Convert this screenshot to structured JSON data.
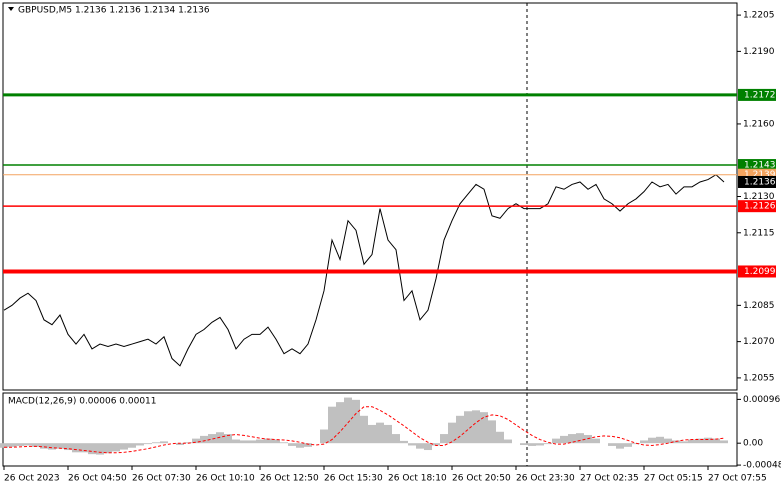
{
  "chart_data": [
    {
      "type": "line",
      "title": "GBPUSD,M5 1.2136 1.2136 1.2134 1.2136",
      "categories": [
        "26 Oct 2023",
        null,
        null,
        null,
        null,
        null,
        null,
        null,
        "26 Oct 04:50",
        null,
        null,
        null,
        null,
        null,
        null,
        null,
        "26 Oct 07:30",
        null,
        null,
        null,
        null,
        null,
        null,
        null,
        "26 Oct 10:10",
        null,
        null,
        null,
        null,
        null,
        null,
        null,
        "26 Oct 12:50",
        null,
        null,
        null,
        null,
        null,
        null,
        null,
        "26 Oct 15:30",
        null,
        null,
        null,
        null,
        null,
        null,
        null,
        "26 Oct 18:10",
        null,
        null,
        null,
        null,
        null,
        null,
        null,
        "26 Oct 20:50",
        null,
        null,
        null,
        null,
        null,
        null,
        null,
        "26 Oct 23:30",
        null,
        null,
        null,
        null,
        null,
        null,
        null,
        "27 Oct 02:35",
        null,
        null,
        null,
        null,
        null,
        null,
        null,
        "27 Oct 05:15",
        null,
        null,
        null,
        null,
        null,
        null,
        null,
        "27 Oct 07:55",
        null,
        null
      ],
      "series": [
        {
          "color": "#000000",
          "values": [
            1.2083,
            1.2085,
            1.2088,
            1.209,
            1.2087,
            1.2079,
            1.2077,
            1.2081,
            1.2073,
            1.2069,
            1.2073,
            1.2067,
            1.2069,
            1.2068,
            1.2069,
            1.2068,
            1.2069,
            1.207,
            1.2071,
            1.2069,
            1.2072,
            1.2063,
            1.206,
            1.2067,
            1.2073,
            1.2075,
            1.2078,
            1.208,
            1.2075,
            1.2067,
            1.2071,
            1.2073,
            1.2073,
            1.2076,
            1.2071,
            1.2065,
            1.2067,
            1.2065,
            1.2069,
            1.2079,
            1.2091,
            1.2112,
            1.2104,
            1.212,
            1.2116,
            1.2102,
            1.2106,
            1.2125,
            1.2112,
            1.2108,
            1.2087,
            1.2091,
            1.2079,
            1.2083,
            1.2096,
            1.2112,
            1.212,
            1.2127,
            1.2131,
            1.2135,
            1.2133,
            1.2122,
            1.2121,
            1.2125,
            1.2127,
            1.2125,
            1.2125,
            1.2125,
            1.2127,
            1.2134,
            1.2133,
            1.2135,
            1.2136,
            1.2133,
            1.2135,
            1.2129,
            1.2127,
            1.2124,
            1.2127,
            1.2129,
            1.2132,
            1.2136,
            1.2134,
            1.2135,
            1.2131,
            1.2134,
            1.2134,
            1.2136,
            1.2137,
            1.2139,
            1.2136
          ]
        }
      ],
      "ylim": [
        1.205,
        1.221
      ],
      "yticks": [
        1.2205,
        {
          "value": 1.219,
          "label": "1.2190"
        },
        {
          "value": 1.216,
          "label": "1.2160"
        },
        {
          "value": 1.213,
          "label": "1.2130"
        },
        1.2115,
        1.2085,
        {
          "value": 1.207,
          "label": "1.2070"
        },
        1.2055
      ],
      "levels": [
        {
          "value": 1.2172,
          "color": "#008000"
        },
        {
          "value": 1.2143,
          "color": "#008000"
        },
        {
          "value": 1.2139,
          "color": "#f4a460"
        },
        {
          "value": 1.2126,
          "color": "#ff0000"
        },
        {
          "value": 1.2099,
          "color": "#ff0000"
        }
      ],
      "current_price": 1.2136
    },
    {
      "type": "bar",
      "title": "MACD(12,26,9) 0.00006 0.00011",
      "series": [
        {
          "color": "#c0c0c0",
          "values": [
            -0.0001,
            -8e-05,
            -6e-05,
            -5e-05,
            -8e-05,
            -0.00012,
            -0.00014,
            -0.00012,
            -0.00015,
            -0.0002,
            -0.0002,
            -0.00024,
            -0.00025,
            -0.00022,
            -0.00018,
            -0.00014,
            -0.0001,
            -5e-05,
            -2e-05,
            2e-05,
            4e-05,
            0,
            -4e-05,
            2e-05,
            0.0001,
            0.00016,
            0.0002,
            0.00024,
            0.0002,
            8e-05,
            6e-05,
            6e-05,
            8e-05,
            0.0001,
            8e-05,
            2e-05,
            -6e-05,
            -0.0001,
            -8e-05,
            0,
            0.0003,
            0.0008,
            0.0009,
            0.001,
            0.00095,
            0.0006,
            0.0004,
            0.00045,
            0.0004,
            0.0002,
            5e-05,
            -5e-05,
            -0.00012,
            -0.00015,
            -5e-05,
            0.0002,
            0.00045,
            0.0006,
            0.0007,
            0.00072,
            0.00068,
            0.0005,
            0.00025,
            8e-05,
            0,
            -4e-05,
            -6e-05,
            -5e-05,
            -2e-05,
            0.0001,
            0.00016,
            0.0002,
            0.00022,
            0.00018,
            0.0001,
            0,
            -6e-05,
            -0.00012,
            -8e-05,
            -2e-05,
            6e-05,
            0.00012,
            0.00014,
            0.0001,
            6e-05,
            4e-05,
            8e-05,
            0.0001,
            0.00012,
            0.0001,
            6e-05
          ]
        },
        {
          "color": "#ff0000",
          "values": [
            -9e-05,
            -9e-05,
            -8e-05,
            -7e-05,
            -7e-05,
            -8e-05,
            -0.0001,
            -0.00011,
            -0.00012,
            -0.00014,
            -0.00016,
            -0.00018,
            -0.0002,
            -0.00021,
            -0.00021,
            -0.0002,
            -0.00018,
            -0.00015,
            -0.00012,
            -8e-05,
            -4e-05,
            -1e-05,
            0,
            0,
            2e-05,
            5e-05,
            9e-05,
            0.00013,
            0.00017,
            0.00019,
            0.00017,
            0.00014,
            0.00011,
            9e-05,
            8e-05,
            7e-05,
            5e-05,
            2e-05,
            -2e-05,
            -4e-05,
            -2e-05,
            8e-05,
            0.00025,
            0.00045,
            0.00065,
            0.0008,
            0.0008,
            0.00072,
            0.00062,
            0.0005,
            0.00038,
            0.00025,
            0.00012,
            2e-05,
            -5e-05,
            -5e-05,
            3e-05,
            0.00015,
            0.0003,
            0.00045,
            0.00057,
            0.00062,
            0.0006,
            0.00052,
            0.0004,
            0.00028,
            0.00017,
            8e-05,
            2e-05,
            -2e-05,
            -2e-05,
            2e-05,
            6e-05,
            0.0001,
            0.00014,
            0.00016,
            0.00015,
            0.00012,
            6e-05,
            0,
            -4e-05,
            -5e-05,
            -3e-05,
            0,
            4e-05,
            7e-05,
            8e-05,
            8e-05,
            8e-05,
            9e-05,
            0.00011
          ]
        }
      ],
      "ylim": [
        -0.0005,
        0.0011
      ],
      "yticks": [
        0.00096,
        {
          "value": 0,
          "label": "0.00"
        },
        -0.00048
      ]
    }
  ]
}
